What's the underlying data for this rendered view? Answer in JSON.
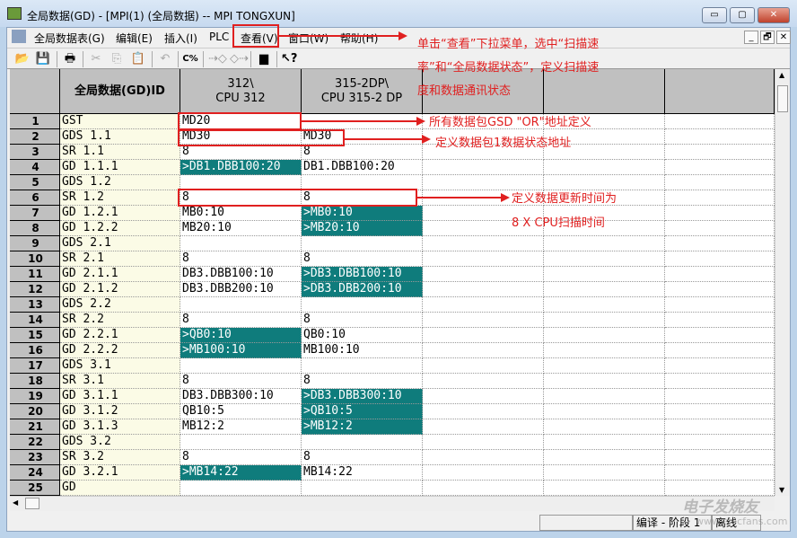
{
  "window": {
    "title": "全局数据(GD) - [MPI(1) (全局数据) -- MPI  TONGXUN]",
    "minimize": "▭",
    "restore": "▢",
    "close": "✕"
  },
  "menu": [
    "全局数据表(G)",
    "编辑(E)",
    "插入(I)",
    "PLC",
    "查看(V)",
    "窗口(W)",
    "帮助(H)"
  ],
  "mdi_buttons": [
    "_",
    "🗗",
    "✕"
  ],
  "toolbar": [
    "open-icon",
    "save-icon",
    "print-icon",
    "cut-icon",
    "copy-icon",
    "paste-icon",
    "undo-icon",
    "compile-icon",
    "send-icon",
    "receive-icon",
    "monitor-icon",
    "help-icon"
  ],
  "columns": [
    "全局数据(GD)ID",
    "312\\\nCPU 312",
    "315-2DP\\\nCPU 315-2 DP",
    "",
    "",
    ""
  ],
  "rows": [
    {
      "n": "1",
      "id": "GST",
      "c1": "MD20",
      "c2": ""
    },
    {
      "n": "2",
      "id": "GDS 1.1",
      "c1": "MD30",
      "c2": "MD30"
    },
    {
      "n": "3",
      "id": "SR 1.1",
      "c1": "8",
      "c2": "8"
    },
    {
      "n": "4",
      "id": "GD 1.1.1",
      "c1": ">DB1.DBB100:20",
      "c2": "DB1.DBB100:20",
      "t": 1
    },
    {
      "n": "5",
      "id": "GDS 1.2",
      "c1": "",
      "c2": ""
    },
    {
      "n": "6",
      "id": "SR 1.2",
      "c1": "8",
      "c2": "8"
    },
    {
      "n": "7",
      "id": "GD 1.2.1",
      "c1": "MB0:10",
      "c2": ">MB0:10",
      "t": 2
    },
    {
      "n": "8",
      "id": "GD 1.2.2",
      "c1": "MB20:10",
      "c2": ">MB20:10",
      "t": 2
    },
    {
      "n": "9",
      "id": "GDS 2.1",
      "c1": "",
      "c2": ""
    },
    {
      "n": "10",
      "id": "SR 2.1",
      "c1": "8",
      "c2": "8"
    },
    {
      "n": "11",
      "id": "GD 2.1.1",
      "c1": "DB3.DBB100:10",
      "c2": ">DB3.DBB100:10",
      "t": 2
    },
    {
      "n": "12",
      "id": "GD 2.1.2",
      "c1": "DB3.DBB200:10",
      "c2": ">DB3.DBB200:10",
      "t": 2
    },
    {
      "n": "13",
      "id": "GDS 2.2",
      "c1": "",
      "c2": ""
    },
    {
      "n": "14",
      "id": "SR 2.2",
      "c1": "8",
      "c2": "8"
    },
    {
      "n": "15",
      "id": "GD 2.2.1",
      "c1": ">QB0:10",
      "c2": "QB0:10",
      "t": 1
    },
    {
      "n": "16",
      "id": "GD 2.2.2",
      "c1": ">MB100:10",
      "c2": "MB100:10",
      "t": 1
    },
    {
      "n": "17",
      "id": "GDS 3.1",
      "c1": "",
      "c2": ""
    },
    {
      "n": "18",
      "id": "SR 3.1",
      "c1": "8",
      "c2": "8"
    },
    {
      "n": "19",
      "id": "GD 3.1.1",
      "c1": "DB3.DBB300:10",
      "c2": ">DB3.DBB300:10",
      "t": 2
    },
    {
      "n": "20",
      "id": "GD 3.1.2",
      "c1": "QB10:5",
      "c2": ">QB10:5",
      "t": 2
    },
    {
      "n": "21",
      "id": "GD 3.1.3",
      "c1": "MB12:2",
      "c2": ">MB12:2",
      "t": 2
    },
    {
      "n": "22",
      "id": "GDS 3.2",
      "c1": "",
      "c2": ""
    },
    {
      "n": "23",
      "id": "SR 3.2",
      "c1": "8",
      "c2": "8"
    },
    {
      "n": "24",
      "id": "GD 3.2.1",
      "c1": ">MB14:22",
      "c2": "MB14:22",
      "t": 1
    },
    {
      "n": "25",
      "id": "GD",
      "c1": "",
      "c2": ""
    }
  ],
  "status": {
    "pane1": "",
    "pane2": "编译 - 阶段 1",
    "pane3": "离线"
  },
  "annotations": {
    "menu_note": [
      "单击“查看”下拉菜单，选中“扫描速",
      "率”和“全局数据状态”，定义扫描速",
      "度和数据通讯状态"
    ],
    "row1_note": "所有数据包GSD \"OR\"地址定义",
    "row2_note": "定义数据包1数据状态地址",
    "row6_note": [
      "定义数据更新时间为",
      "8 X CPU扫描时间"
    ]
  },
  "watermark": {
    "name": "电子发烧友",
    "url": "www.elecfans.com"
  },
  "colors": {
    "teal": "#0f7c7c",
    "annotation": "#e02020",
    "header": "#c0c0c0"
  }
}
